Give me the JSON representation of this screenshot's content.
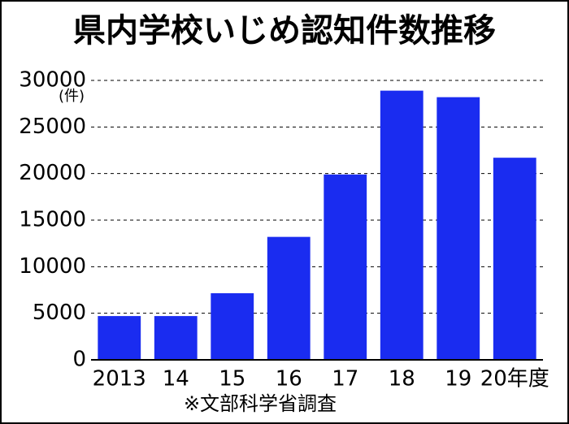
{
  "chart_data": {
    "type": "bar",
    "title": "県内学校いじめ認知件数推移",
    "unit_label": "(件)",
    "note": "※文部科学省調査",
    "categories": [
      "2013",
      "14",
      "15",
      "16",
      "17",
      "18",
      "19",
      "20年度"
    ],
    "values": [
      4700,
      4700,
      7150,
      13200,
      19900,
      28900,
      28200,
      21700
    ],
    "color": "#1a2cf0",
    "ylim": [
      0,
      30000
    ],
    "yticks": [
      0,
      5000,
      10000,
      15000,
      20000,
      25000,
      30000
    ],
    "grid": true
  }
}
